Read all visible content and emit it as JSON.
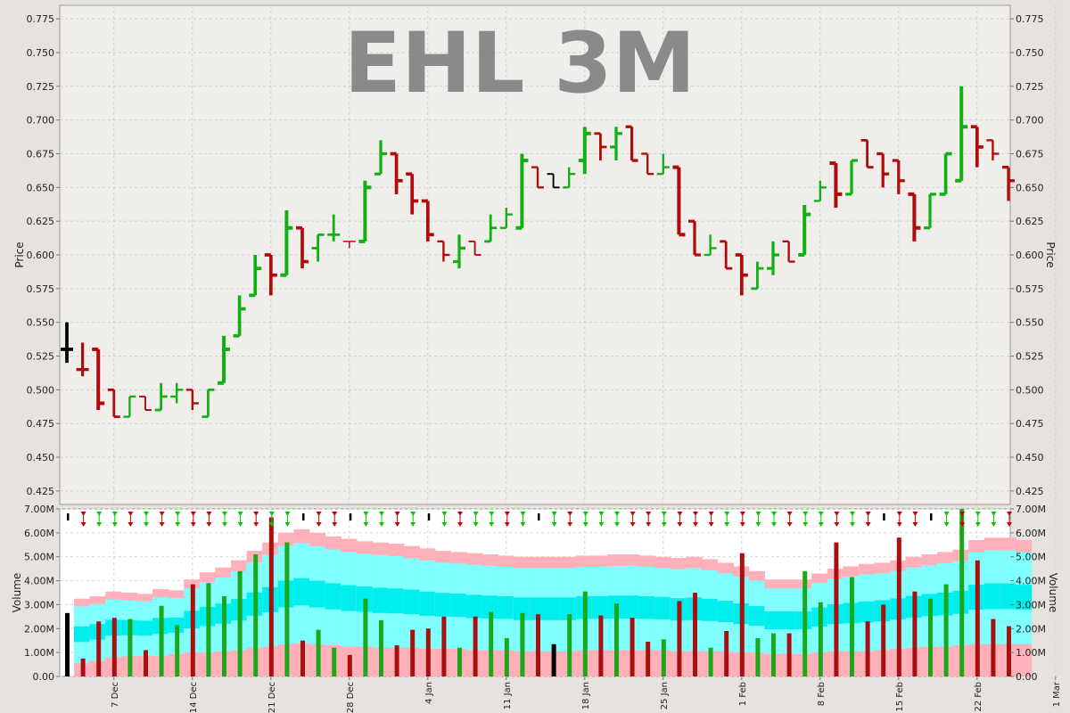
{
  "chart_data": [
    {
      "type": "ohlc",
      "title": "EHL 3M",
      "ylabel": "Price",
      "ylim": [
        0.415,
        0.785
      ],
      "grid": true,
      "y_ticks": [
        "0.425",
        "0.450",
        "0.475",
        "0.500",
        "0.525",
        "0.550",
        "0.575",
        "0.600",
        "0.625",
        "0.650",
        "0.675",
        "0.700",
        "0.725",
        "0.750",
        "0.775"
      ],
      "x_ticks": [
        "7 Dec",
        "14 Dec",
        "21 Dec",
        "28 Dec",
        "4 Jan",
        "11 Jan",
        "18 Jan",
        "25 Jan",
        "1 Feb",
        "8 Feb",
        "15 Feb",
        "22 Feb",
        "1 Mar"
      ],
      "bars": [
        {
          "o": 0.53,
          "h": 0.55,
          "l": 0.52,
          "c": 0.53,
          "dir": "flat"
        },
        {
          "o": 0.515,
          "h": 0.535,
          "l": 0.51,
          "c": 0.515,
          "dir": "down"
        },
        {
          "o": 0.53,
          "h": 0.53,
          "l": 0.485,
          "c": 0.49,
          "dir": "down"
        },
        {
          "o": 0.5,
          "h": 0.5,
          "l": 0.48,
          "c": 0.48,
          "dir": "down"
        },
        {
          "o": 0.48,
          "h": 0.495,
          "l": 0.48,
          "c": 0.495,
          "dir": "up"
        },
        {
          "o": 0.495,
          "h": 0.495,
          "l": 0.485,
          "c": 0.485,
          "dir": "down"
        },
        {
          "o": 0.485,
          "h": 0.505,
          "l": 0.485,
          "c": 0.495,
          "dir": "up"
        },
        {
          "o": 0.495,
          "h": 0.505,
          "l": 0.49,
          "c": 0.5,
          "dir": "up"
        },
        {
          "o": 0.5,
          "h": 0.5,
          "l": 0.485,
          "c": 0.49,
          "dir": "down"
        },
        {
          "o": 0.48,
          "h": 0.5,
          "l": 0.48,
          "c": 0.5,
          "dir": "up"
        },
        {
          "o": 0.505,
          "h": 0.54,
          "l": 0.505,
          "c": 0.53,
          "dir": "up"
        },
        {
          "o": 0.54,
          "h": 0.57,
          "l": 0.54,
          "c": 0.56,
          "dir": "up"
        },
        {
          "o": 0.57,
          "h": 0.6,
          "l": 0.57,
          "c": 0.59,
          "dir": "up"
        },
        {
          "o": 0.6,
          "h": 0.6,
          "l": 0.57,
          "c": 0.585,
          "dir": "down"
        },
        {
          "o": 0.585,
          "h": 0.633,
          "l": 0.585,
          "c": 0.62,
          "dir": "up"
        },
        {
          "o": 0.62,
          "h": 0.62,
          "l": 0.59,
          "c": 0.595,
          "dir": "down"
        },
        {
          "o": 0.605,
          "h": 0.615,
          "l": 0.595,
          "c": 0.615,
          "dir": "up"
        },
        {
          "o": 0.615,
          "h": 0.63,
          "l": 0.61,
          "c": 0.615,
          "dir": "up"
        },
        {
          "o": 0.61,
          "h": 0.61,
          "l": 0.605,
          "c": 0.61,
          "dir": "down"
        },
        {
          "o": 0.61,
          "h": 0.655,
          "l": 0.61,
          "c": 0.65,
          "dir": "up"
        },
        {
          "o": 0.66,
          "h": 0.685,
          "l": 0.66,
          "c": 0.675,
          "dir": "up"
        },
        {
          "o": 0.675,
          "h": 0.675,
          "l": 0.645,
          "c": 0.655,
          "dir": "down"
        },
        {
          "o": 0.66,
          "h": 0.66,
          "l": 0.63,
          "c": 0.64,
          "dir": "down"
        },
        {
          "o": 0.64,
          "h": 0.64,
          "l": 0.61,
          "c": 0.615,
          "dir": "down"
        },
        {
          "o": 0.61,
          "h": 0.61,
          "l": 0.595,
          "c": 0.6,
          "dir": "down"
        },
        {
          "o": 0.595,
          "h": 0.615,
          "l": 0.59,
          "c": 0.605,
          "dir": "up"
        },
        {
          "o": 0.61,
          "h": 0.61,
          "l": 0.6,
          "c": 0.6,
          "dir": "down"
        },
        {
          "o": 0.61,
          "h": 0.63,
          "l": 0.61,
          "c": 0.62,
          "dir": "up"
        },
        {
          "o": 0.62,
          "h": 0.635,
          "l": 0.62,
          "c": 0.63,
          "dir": "up"
        },
        {
          "o": 0.62,
          "h": 0.675,
          "l": 0.62,
          "c": 0.67,
          "dir": "up"
        },
        {
          "o": 0.665,
          "h": 0.665,
          "l": 0.65,
          "c": 0.65,
          "dir": "down"
        },
        {
          "o": 0.66,
          "h": 0.66,
          "l": 0.65,
          "c": 0.65,
          "dir": "flat"
        },
        {
          "o": 0.65,
          "h": 0.665,
          "l": 0.65,
          "c": 0.66,
          "dir": "up"
        },
        {
          "o": 0.67,
          "h": 0.695,
          "l": 0.66,
          "c": 0.69,
          "dir": "up"
        },
        {
          "o": 0.69,
          "h": 0.69,
          "l": 0.67,
          "c": 0.68,
          "dir": "down"
        },
        {
          "o": 0.68,
          "h": 0.695,
          "l": 0.67,
          "c": 0.69,
          "dir": "up"
        },
        {
          "o": 0.695,
          "h": 0.695,
          "l": 0.67,
          "c": 0.67,
          "dir": "down"
        },
        {
          "o": 0.675,
          "h": 0.675,
          "l": 0.66,
          "c": 0.66,
          "dir": "down"
        },
        {
          "o": 0.66,
          "h": 0.675,
          "l": 0.66,
          "c": 0.665,
          "dir": "up"
        },
        {
          "o": 0.665,
          "h": 0.665,
          "l": 0.615,
          "c": 0.615,
          "dir": "down"
        },
        {
          "o": 0.625,
          "h": 0.625,
          "l": 0.6,
          "c": 0.6,
          "dir": "down"
        },
        {
          "o": 0.6,
          "h": 0.615,
          "l": 0.6,
          "c": 0.605,
          "dir": "up"
        },
        {
          "o": 0.61,
          "h": 0.61,
          "l": 0.59,
          "c": 0.59,
          "dir": "down"
        },
        {
          "o": 0.6,
          "h": 0.6,
          "l": 0.57,
          "c": 0.585,
          "dir": "down"
        },
        {
          "o": 0.575,
          "h": 0.595,
          "l": 0.575,
          "c": 0.59,
          "dir": "up"
        },
        {
          "o": 0.59,
          "h": 0.61,
          "l": 0.585,
          "c": 0.6,
          "dir": "up"
        },
        {
          "o": 0.61,
          "h": 0.61,
          "l": 0.595,
          "c": 0.595,
          "dir": "down"
        },
        {
          "o": 0.6,
          "h": 0.637,
          "l": 0.6,
          "c": 0.63,
          "dir": "up"
        },
        {
          "o": 0.64,
          "h": 0.655,
          "l": 0.64,
          "c": 0.65,
          "dir": "up"
        },
        {
          "o": 0.668,
          "h": 0.668,
          "l": 0.635,
          "c": 0.645,
          "dir": "down"
        },
        {
          "o": 0.645,
          "h": 0.67,
          "l": 0.645,
          "c": 0.67,
          "dir": "up"
        },
        {
          "o": 0.685,
          "h": 0.685,
          "l": 0.665,
          "c": 0.665,
          "dir": "down"
        },
        {
          "o": 0.675,
          "h": 0.675,
          "l": 0.65,
          "c": 0.66,
          "dir": "down"
        },
        {
          "o": 0.67,
          "h": 0.67,
          "l": 0.645,
          "c": 0.655,
          "dir": "down"
        },
        {
          "o": 0.645,
          "h": 0.645,
          "l": 0.61,
          "c": 0.62,
          "dir": "down"
        },
        {
          "o": 0.62,
          "h": 0.645,
          "l": 0.62,
          "c": 0.645,
          "dir": "up"
        },
        {
          "o": 0.645,
          "h": 0.675,
          "l": 0.645,
          "c": 0.675,
          "dir": "up"
        },
        {
          "o": 0.655,
          "h": 0.725,
          "l": 0.655,
          "c": 0.695,
          "dir": "up"
        },
        {
          "o": 0.695,
          "h": 0.695,
          "l": 0.665,
          "c": 0.68,
          "dir": "down"
        },
        {
          "o": 0.685,
          "h": 0.685,
          "l": 0.67,
          "c": 0.675,
          "dir": "down"
        },
        {
          "o": 0.665,
          "h": 0.665,
          "l": 0.64,
          "c": 0.655,
          "dir": "down"
        }
      ]
    },
    {
      "type": "bar",
      "ylabel": "Volume",
      "ylim": [
        0,
        7.0
      ],
      "grid": true,
      "y_ticks": [
        "0.00",
        "1.00M",
        "2.00M",
        "3.00M",
        "4.00M",
        "5.00M",
        "6.00M",
        "7.00M"
      ],
      "volumes_millions": [
        2.65,
        0.75,
        2.3,
        2.45,
        2.4,
        1.1,
        2.95,
        2.15,
        3.85,
        3.9,
        3.35,
        4.4,
        5.1,
        6.65,
        5.6,
        1.5,
        1.95,
        1.2,
        0.9,
        3.25,
        2.35,
        1.3,
        1.95,
        2.0,
        2.5,
        1.2,
        2.5,
        2.7,
        1.6,
        2.65,
        2.6,
        1.35,
        2.6,
        3.55,
        2.55,
        3.05,
        2.45,
        1.45,
        1.55,
        3.15,
        3.5,
        1.2,
        1.9,
        5.15,
        1.6,
        1.8,
        1.8,
        4.4,
        3.1,
        5.6,
        4.15,
        2.3,
        3.0,
        5.8,
        3.55,
        3.25,
        3.85,
        7.0,
        4.85,
        2.4,
        2.1
      ],
      "band_upper": [
        3.25,
        3.35,
        3.55,
        3.5,
        3.45,
        3.65,
        3.6,
        4.05,
        4.35,
        4.55,
        4.85,
        5.25,
        5.6,
        6.0,
        6.15,
        6.0,
        5.85,
        5.75,
        5.65,
        5.6,
        5.55,
        5.45,
        5.35,
        5.25,
        5.2,
        5.15,
        5.1,
        5.05,
        5.0,
        5.0,
        5.0,
        5.0,
        5.05,
        5.05,
        5.1,
        5.1,
        5.05,
        5.0,
        4.95,
        5.0,
        4.9,
        4.75,
        4.6,
        4.4,
        4.05,
        4.05,
        4.05,
        4.3,
        4.5,
        4.6,
        4.7,
        4.75,
        4.85,
        5.0,
        5.1,
        5.2,
        5.3,
        5.7,
        5.8,
        5.8,
        5.7
      ],
      "band_lower": [
        0.55,
        0.65,
        0.8,
        0.85,
        0.85,
        0.85,
        0.95,
        1.0,
        1.0,
        1.05,
        1.1,
        1.2,
        1.25,
        1.35,
        1.4,
        1.35,
        1.3,
        1.25,
        1.25,
        1.2,
        1.2,
        1.2,
        1.15,
        1.15,
        1.15,
        1.1,
        1.1,
        1.1,
        1.05,
        1.05,
        1.05,
        1.05,
        1.1,
        1.1,
        1.1,
        1.1,
        1.1,
        1.1,
        1.05,
        1.05,
        1.05,
        1.05,
        1.0,
        1.0,
        0.95,
        0.95,
        0.95,
        1.0,
        1.05,
        1.05,
        1.05,
        1.1,
        1.15,
        1.2,
        1.25,
        1.25,
        1.3,
        1.35,
        1.35,
        1.35,
        1.35
      ],
      "markers": [
        "flat",
        "down",
        "up",
        "up",
        "down",
        "up",
        "down",
        "up",
        "down",
        "down",
        "up",
        "up",
        "down",
        "up",
        "up",
        "flat",
        "down",
        "down",
        "flat",
        "up",
        "up",
        "down",
        "up",
        "flat",
        "up",
        "down",
        "up",
        "up",
        "down",
        "up",
        "flat",
        "up",
        "down",
        "up",
        "up",
        "up",
        "down",
        "down",
        "up",
        "down",
        "down",
        "down",
        "up",
        "down",
        "up",
        "up",
        "down",
        "up",
        "up",
        "down",
        "up",
        "down",
        "flat",
        "down",
        "down",
        "flat",
        "up",
        "down",
        "up",
        "up",
        "down"
      ],
      "colors": {
        "up": "#00cc00",
        "down": "#cc0000",
        "flat": "#000000",
        "up_bar": "#1aa81a",
        "down_bar": "#a81010",
        "band_outer": "#ffb0b8",
        "band_mid": "#80ffff",
        "band_inner": "#00eeee"
      }
    }
  ]
}
